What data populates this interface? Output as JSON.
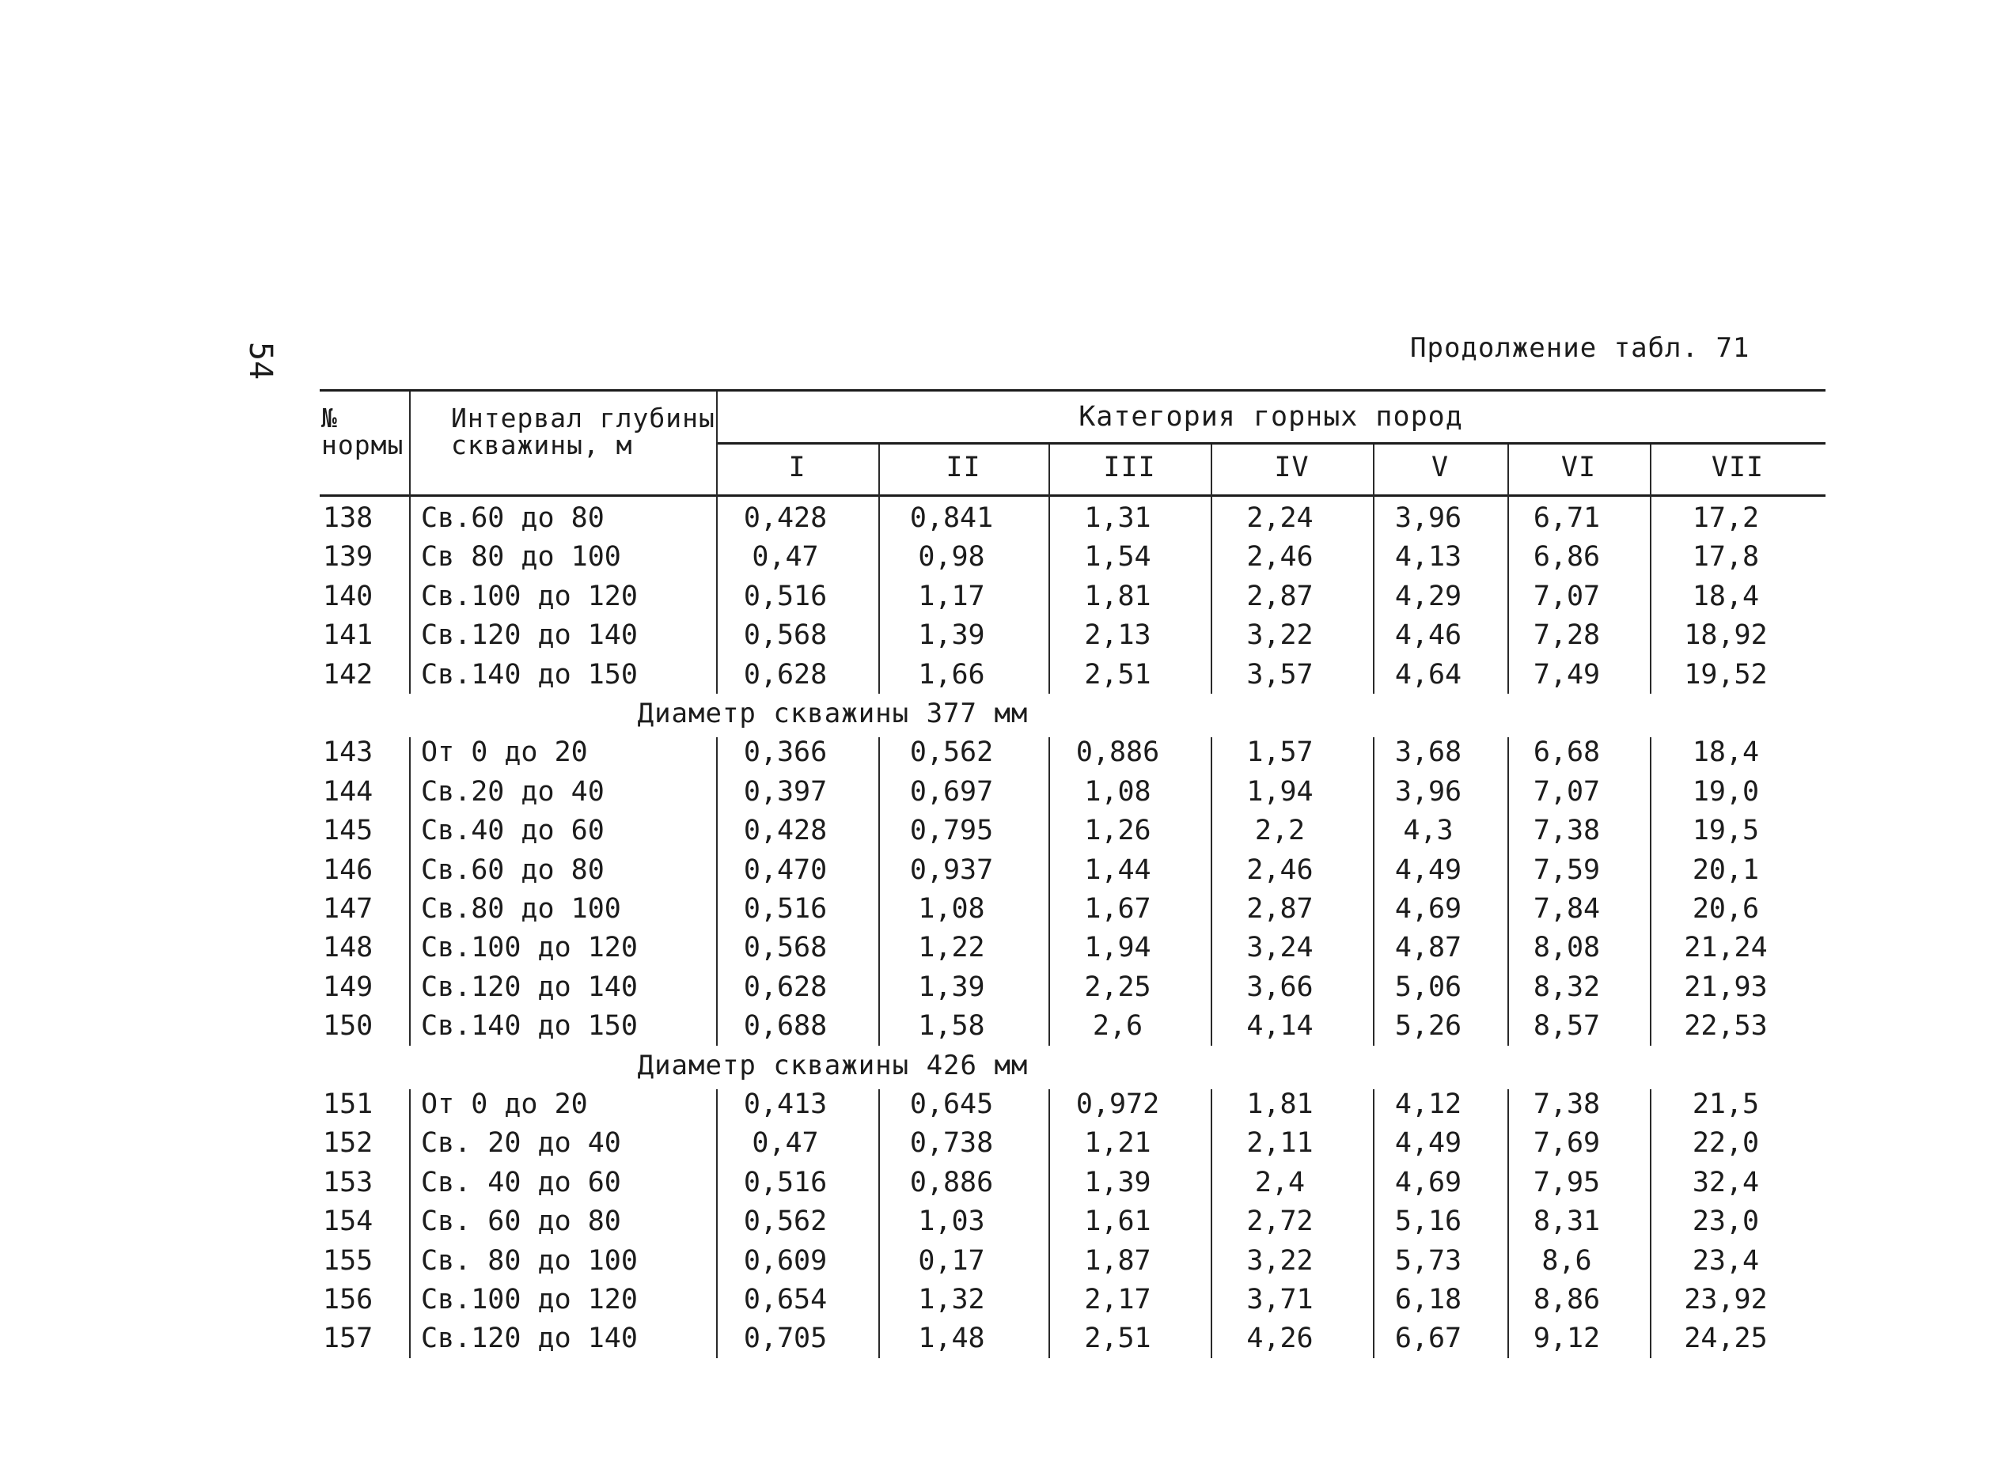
{
  "page_number": "54",
  "caption": "Продолжение табл. 71",
  "header": {
    "num_col": "№ нормы",
    "interval_col_line1": "Интервал глубины",
    "interval_col_line2": "скважины, м",
    "category_title": "Категория горных пород",
    "categories": [
      "I",
      "II",
      "III",
      "IV",
      "V",
      "VI",
      "VII"
    ]
  },
  "groups": [
    {
      "title": "",
      "rows": [
        {
          "num": "138",
          "interval": "Св.60 до 80",
          "values": [
            "0,428",
            "0,841",
            "1,31",
            "2,24",
            "3,96",
            "6,71",
            "17,2"
          ]
        },
        {
          "num": "139",
          "interval": "Св 80 до 100",
          "values": [
            "0,47",
            "0,98",
            "1,54",
            "2,46",
            "4,13",
            "6,86",
            "17,8"
          ]
        },
        {
          "num": "140",
          "interval": "Св.100 до 120",
          "values": [
            "0,516",
            "1,17",
            "1,81",
            "2,87",
            "4,29",
            "7,07",
            "18,4"
          ]
        },
        {
          "num": "141",
          "interval": "Св.120 до 140",
          "values": [
            "0,568",
            "1,39",
            "2,13",
            "3,22",
            "4,46",
            "7,28",
            "18,92"
          ]
        },
        {
          "num": "142",
          "interval": "Св.140 до 150",
          "values": [
            "0,628",
            "1,66",
            "2,51",
            "3,57",
            "4,64",
            "7,49",
            "19,52"
          ]
        }
      ]
    },
    {
      "title": "Диаметр скважины 377 мм",
      "rows": [
        {
          "num": "143",
          "interval": "От 0 до 20",
          "values": [
            "0,366",
            "0,562",
            "0,886",
            "1,57",
            "3,68",
            "6,68",
            "18,4"
          ]
        },
        {
          "num": "144",
          "interval": "Св.20 до 40",
          "values": [
            "0,397",
            "0,697",
            "1,08",
            "1,94",
            "3,96",
            "7,07",
            "19,0"
          ]
        },
        {
          "num": "145",
          "interval": "Св.40 до 60",
          "values": [
            "0,428",
            "0,795",
            "1,26",
            "2,2",
            "4,3",
            "7,38",
            "19,5"
          ]
        },
        {
          "num": "146",
          "interval": "Св.60 до 80",
          "values": [
            "0,470",
            "0,937",
            "1,44",
            "2,46",
            "4,49",
            "7,59",
            "20,1"
          ]
        },
        {
          "num": "147",
          "interval": "Св.80 до 100",
          "values": [
            "0,516",
            "1,08",
            "1,67",
            "2,87",
            "4,69",
            "7,84",
            "20,6"
          ]
        },
        {
          "num": "148",
          "interval": "Св.100 до 120",
          "values": [
            "0,568",
            "1,22",
            "1,94",
            "3,24",
            "4,87",
            "8,08",
            "21,24"
          ]
        },
        {
          "num": "149",
          "interval": "Св.120 до 140",
          "values": [
            "0,628",
            "1,39",
            "2,25",
            "3,66",
            "5,06",
            "8,32",
            "21,93"
          ]
        },
        {
          "num": "150",
          "interval": "Св.140 до 150",
          "values": [
            "0,688",
            "1,58",
            "2,6",
            "4,14",
            "5,26",
            "8,57",
            "22,53"
          ]
        }
      ]
    },
    {
      "title": "Диаметр скважины 426 мм",
      "rows": [
        {
          "num": "151",
          "interval": "От 0 до 20",
          "values": [
            "0,413",
            "0,645",
            "0,972",
            "1,81",
            "4,12",
            "7,38",
            "21,5"
          ]
        },
        {
          "num": "152",
          "interval": "Св. 20 до 40",
          "values": [
            "0,47",
            "0,738",
            "1,21",
            "2,11",
            "4,49",
            "7,69",
            "22,0"
          ]
        },
        {
          "num": "153",
          "interval": "Св. 40 до 60",
          "values": [
            "0,516",
            "0,886",
            "1,39",
            "2,4",
            "4,69",
            "7,95",
            "32,4"
          ]
        },
        {
          "num": "154",
          "interval": "Св. 60 до 80",
          "values": [
            "0,562",
            "1,03",
            "1,61",
            "2,72",
            "5,16",
            "8,31",
            "23,0"
          ]
        },
        {
          "num": "155",
          "interval": "Св. 80 до 100",
          "values": [
            "0,609",
            "0,17",
            "1,87",
            "3,22",
            "5,73",
            "8,6",
            "23,4"
          ]
        },
        {
          "num": "156",
          "interval": "Св.100 до 120",
          "values": [
            "0,654",
            "1,32",
            "2,17",
            "3,71",
            "6,18",
            "8,86",
            "23,92"
          ]
        },
        {
          "num": "157",
          "interval": "Св.120 до 140",
          "values": [
            "0,705",
            "1,48",
            "2,51",
            "4,26",
            "6,67",
            "9,12",
            "24,25"
          ]
        }
      ]
    }
  ]
}
